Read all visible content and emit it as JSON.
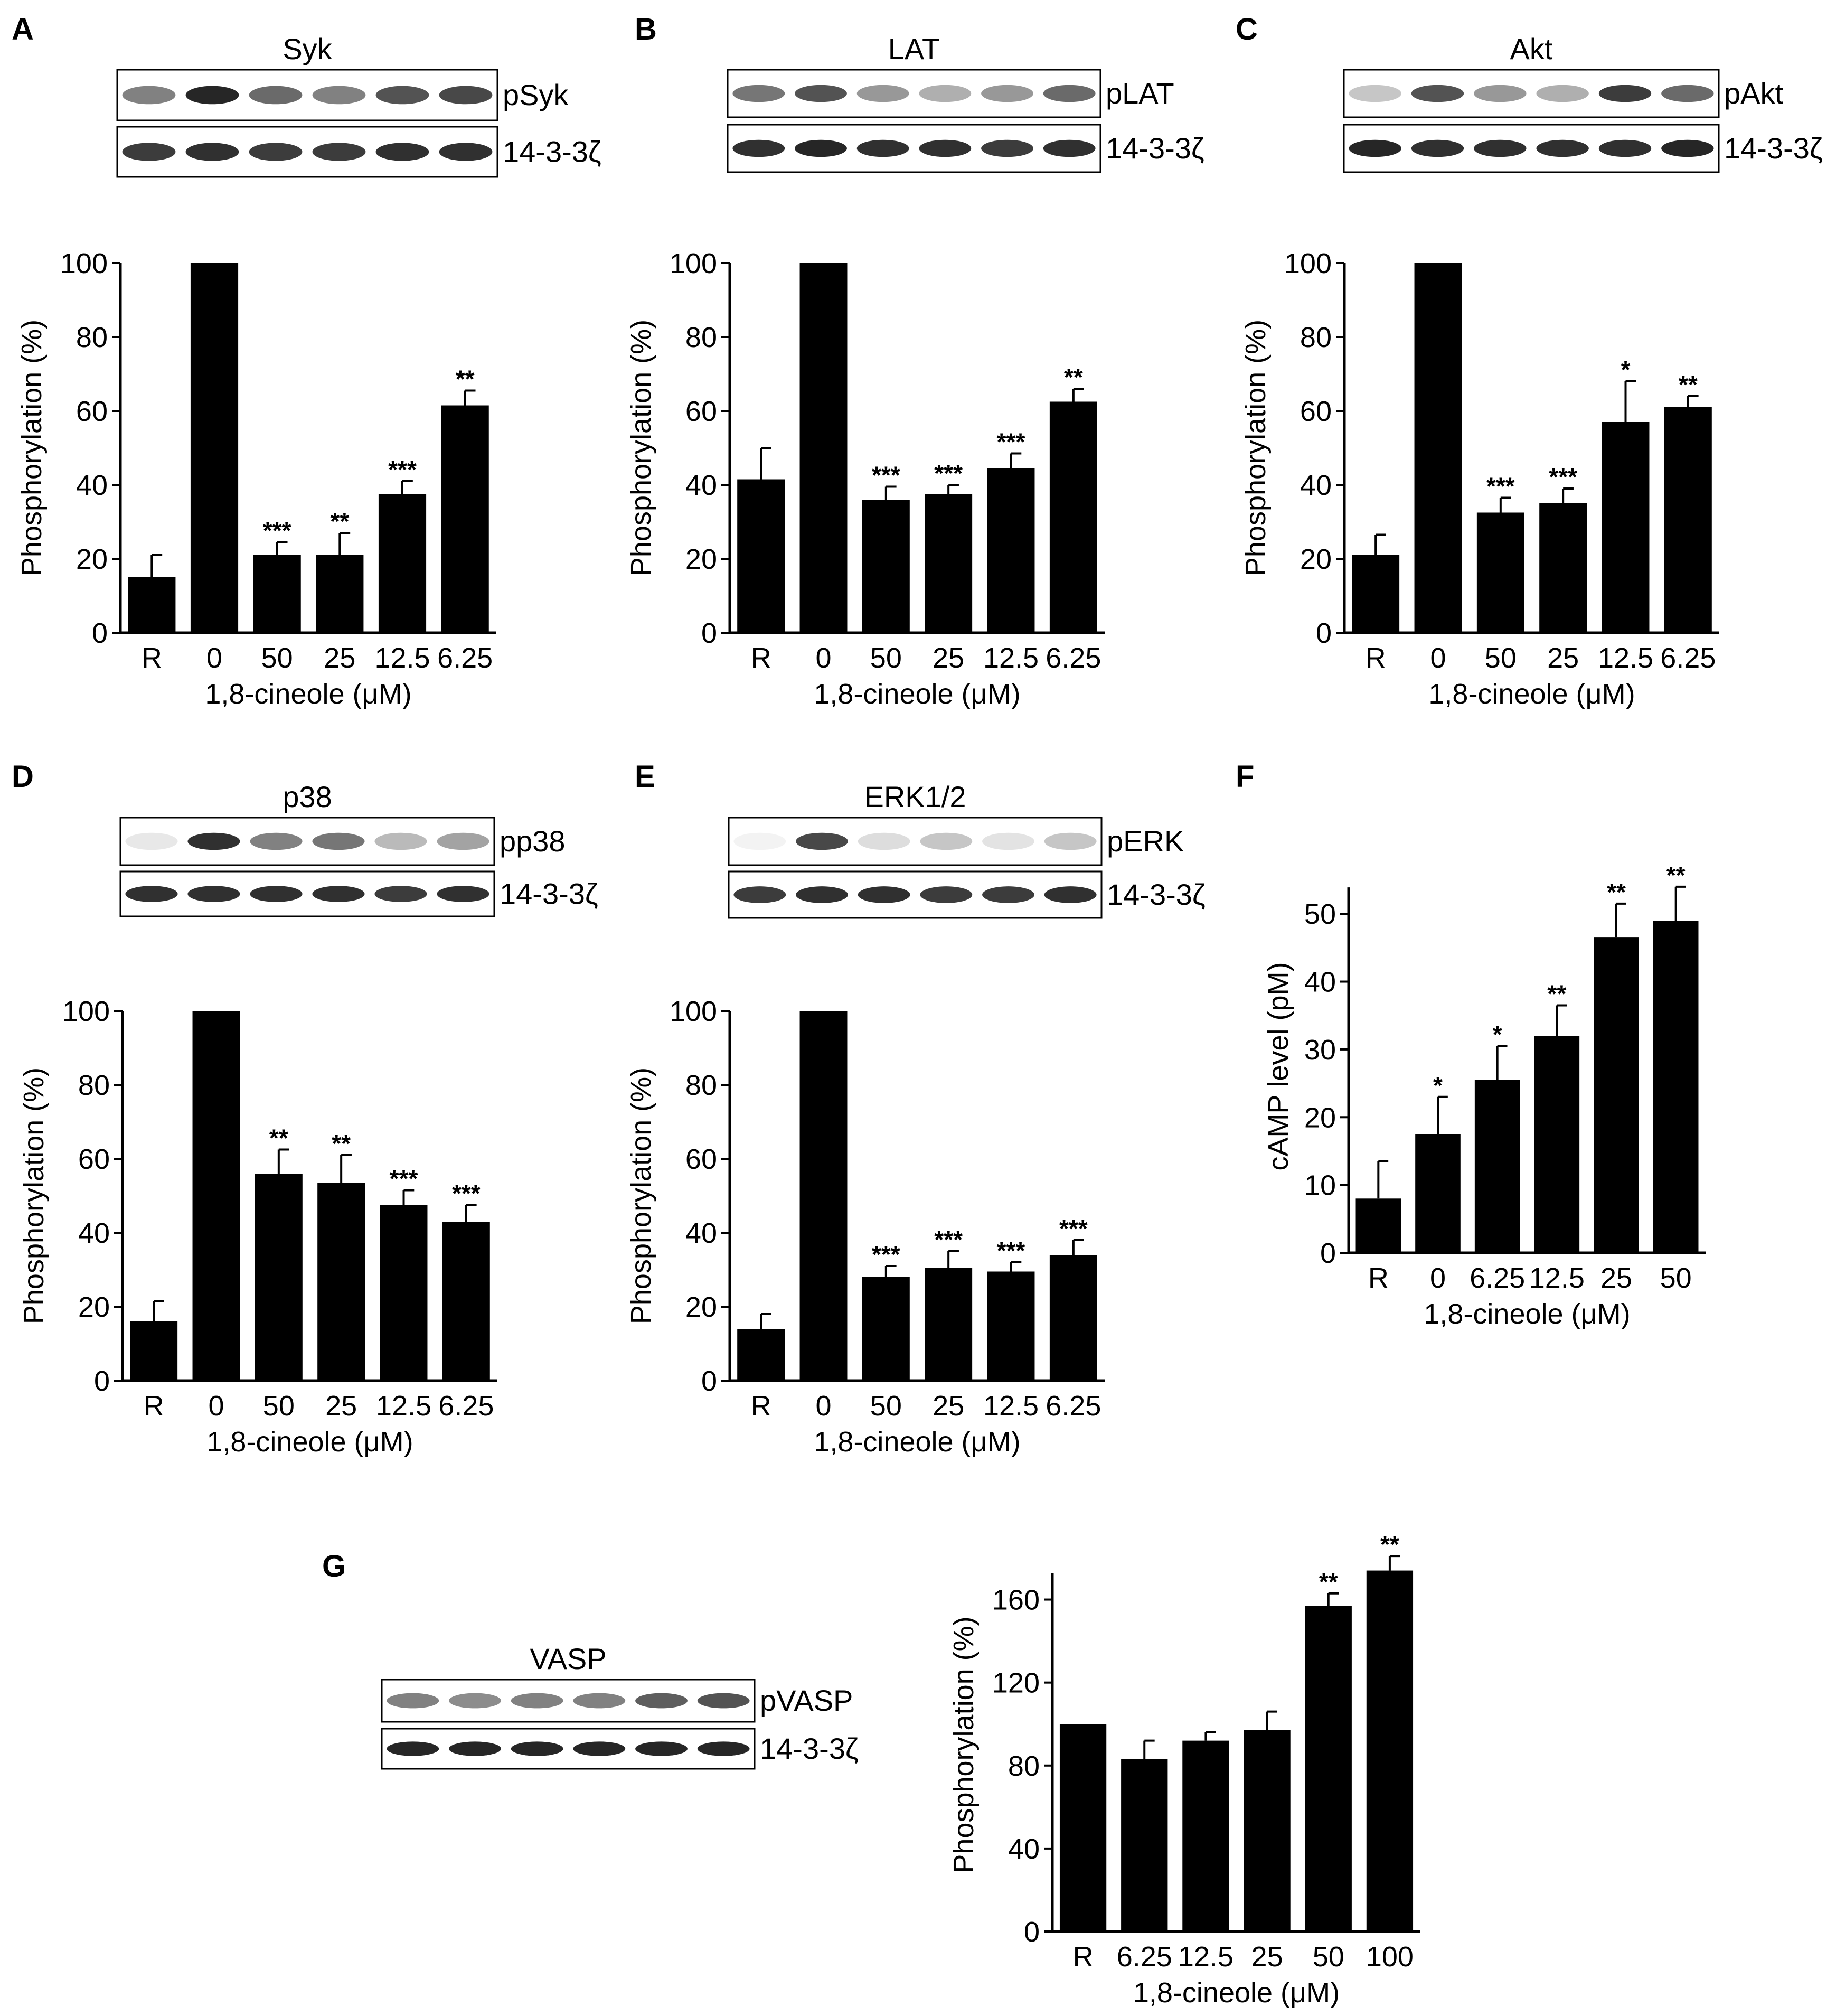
{
  "colors": {
    "bar": "#000000",
    "background": "#ffffff",
    "band": "#1a1a1a"
  },
  "chart_data": [
    {
      "panel": "A",
      "type": "bar",
      "blot": {
        "title": "Syk",
        "rows": [
          {
            "label": "pSyk",
            "intensity": [
              0.55,
              0.95,
              0.65,
              0.55,
              0.75,
              0.8
            ]
          },
          {
            "label": "14-3-3ζ",
            "intensity": [
              0.85,
              0.9,
              0.85,
              0.85,
              0.9,
              0.9
            ]
          }
        ]
      },
      "categories": [
        "R",
        "0",
        "50",
        "25",
        "12.5",
        "6.25"
      ],
      "values": [
        15,
        100,
        21,
        21,
        37.5,
        61.5
      ],
      "errors": [
        6,
        0,
        3.5,
        6,
        3.5,
        4
      ],
      "significance": [
        "",
        "",
        "***",
        "**",
        "***",
        "**"
      ],
      "xlabel": "1,8-cineole (μM)",
      "ylabel": "Phosphorylation (%)",
      "ylim": [
        0,
        100
      ],
      "yticks": [
        0,
        20,
        40,
        60,
        80,
        100
      ]
    },
    {
      "panel": "B",
      "type": "bar",
      "blot": {
        "title": "LAT",
        "rows": [
          {
            "label": "pLAT",
            "intensity": [
              0.6,
              0.75,
              0.45,
              0.35,
              0.45,
              0.65
            ]
          },
          {
            "label": "14-3-3ζ",
            "intensity": [
              0.9,
              0.95,
              0.9,
              0.9,
              0.85,
              0.9
            ]
          }
        ]
      },
      "categories": [
        "R",
        "0",
        "50",
        "25",
        "12.5",
        "6.25"
      ],
      "values": [
        41.5,
        100,
        36,
        37.5,
        44.5,
        62.5
      ],
      "errors": [
        8.5,
        0,
        3.5,
        2.5,
        4,
        3.5
      ],
      "significance": [
        "",
        "",
        "***",
        "***",
        "***",
        "**"
      ],
      "xlabel": "1,8-cineole (μM)",
      "ylabel": "Phosphorylation (%)",
      "ylim": [
        0,
        100
      ],
      "yticks": [
        0,
        20,
        40,
        60,
        80,
        100
      ]
    },
    {
      "panel": "C",
      "type": "bar",
      "blot": {
        "title": "Akt",
        "rows": [
          {
            "label": "pAkt",
            "intensity": [
              0.25,
              0.75,
              0.45,
              0.35,
              0.85,
              0.65
            ]
          },
          {
            "label": "14-3-3ζ",
            "intensity": [
              0.95,
              0.9,
              0.9,
              0.9,
              0.9,
              0.95
            ]
          }
        ]
      },
      "categories": [
        "R",
        "0",
        "50",
        "25",
        "12.5",
        "6.25"
      ],
      "values": [
        21,
        100,
        32.5,
        35,
        57,
        61
      ],
      "errors": [
        5.5,
        0,
        4,
        4,
        11,
        3
      ],
      "significance": [
        "",
        "",
        "***",
        "***",
        "*",
        "**"
      ],
      "xlabel": "1,8-cineole (μM)",
      "ylabel": "Phosphorylation (%)",
      "ylim": [
        0,
        100
      ],
      "yticks": [
        0,
        20,
        40,
        60,
        80,
        100
      ]
    },
    {
      "panel": "D",
      "type": "bar",
      "blot": {
        "title": "p38",
        "rows": [
          {
            "label": "pp38",
            "intensity": [
              0.1,
              0.9,
              0.55,
              0.6,
              0.3,
              0.4
            ]
          },
          {
            "label": "14-3-3ζ",
            "intensity": [
              0.9,
              0.9,
              0.9,
              0.9,
              0.85,
              0.9
            ]
          }
        ]
      },
      "categories": [
        "R",
        "0",
        "50",
        "25",
        "12.5",
        "6.25"
      ],
      "values": [
        16,
        100,
        56,
        53.5,
        47.5,
        43
      ],
      "errors": [
        5.5,
        0,
        6.5,
        7.5,
        4,
        4.5
      ],
      "significance": [
        "",
        "",
        "**",
        "**",
        "***",
        "***"
      ],
      "xlabel": "1,8-cineole (μM)",
      "ylabel": "Phosphorylation (%)",
      "ylim": [
        0,
        100
      ],
      "yticks": [
        0,
        20,
        40,
        60,
        80,
        100
      ]
    },
    {
      "panel": "E",
      "type": "bar",
      "blot": {
        "title": "ERK1/2",
        "rows": [
          {
            "label": "pERK",
            "intensity": [
              0.05,
              0.8,
              0.15,
              0.25,
              0.12,
              0.25
            ]
          },
          {
            "label": "14-3-3ζ",
            "intensity": [
              0.85,
              0.9,
              0.9,
              0.85,
              0.85,
              0.9
            ]
          }
        ]
      },
      "categories": [
        "R",
        "0",
        "50",
        "25",
        "12.5",
        "6.25"
      ],
      "values": [
        14,
        100,
        28,
        30.5,
        29.5,
        34
      ],
      "errors": [
        4,
        0,
        3,
        4.5,
        2.5,
        4
      ],
      "significance": [
        "",
        "",
        "***",
        "***",
        "***",
        "***"
      ],
      "xlabel": "1,8-cineole (μM)",
      "ylabel": "Phosphorylation (%)",
      "ylim": [
        0,
        100
      ],
      "yticks": [
        0,
        20,
        40,
        60,
        80,
        100
      ]
    },
    {
      "panel": "F",
      "type": "bar",
      "categories": [
        "R",
        "0",
        "6.25",
        "12.5",
        "25",
        "50"
      ],
      "values": [
        8,
        17.5,
        25.5,
        32,
        46.5,
        49
      ],
      "errors": [
        5.5,
        5.5,
        5,
        4.5,
        5,
        5
      ],
      "significance": [
        "",
        "*",
        "*",
        "**",
        "**",
        "**"
      ],
      "xlabel": "1,8-cineole (μM)",
      "ylabel": "cAMP level (pM)",
      "ylim": [
        0,
        55
      ],
      "yticks": [
        0,
        10,
        20,
        30,
        40,
        50
      ]
    },
    {
      "panel": "G",
      "type": "bar",
      "blot": {
        "title": "VASP",
        "rows": [
          {
            "label": "pVASP",
            "intensity": [
              0.55,
              0.5,
              0.55,
              0.55,
              0.7,
              0.75
            ]
          },
          {
            "label": "14-3-3ζ",
            "intensity": [
              0.95,
              0.95,
              0.95,
              0.95,
              0.95,
              0.95
            ]
          }
        ]
      },
      "categories": [
        "R",
        "6.25",
        "12.5",
        "25",
        "50",
        "100"
      ],
      "values": [
        100,
        83,
        92,
        97,
        157,
        174
      ],
      "errors": [
        0,
        9,
        4,
        9,
        6,
        7
      ],
      "significance": [
        "",
        "",
        "",
        "",
        "**",
        "**"
      ],
      "xlabel": "1,8-cineole (μM)",
      "ylabel": "Phosphorylation (%)",
      "ylim": [
        0,
        180
      ],
      "yticks": [
        0,
        40,
        80,
        120,
        160
      ]
    }
  ]
}
